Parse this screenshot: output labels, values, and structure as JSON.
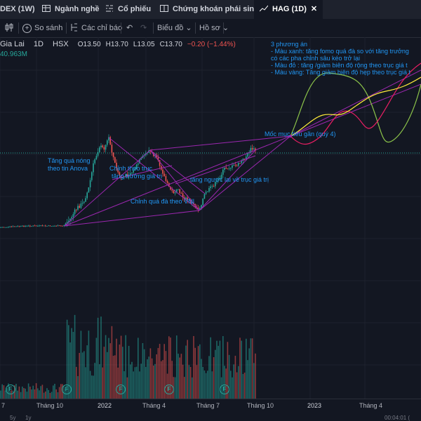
{
  "tabs": [
    {
      "label": "DEX (1W)",
      "icon": "none"
    },
    {
      "label": "Ngành nghề",
      "icon": "table-icon"
    },
    {
      "label": "Cổ phiếu",
      "icon": "filter-icon"
    },
    {
      "label": "Chứng khoán phái sinh",
      "icon": "columns-icon"
    },
    {
      "label": "HAG (1D)",
      "icon": "chart-icon",
      "close": "✕",
      "active": true
    }
  ],
  "toolbar": {
    "compare": "So sánh",
    "indicators": "Các chỉ báo",
    "chart_type": "Biểu đồ",
    "profile": "Hồ sơ"
  },
  "symbol": {
    "name": "Gia Lai",
    "interval": "1D",
    "exchange": "HSX",
    "o": "O13.50",
    "h": "H13.70",
    "l": "L13.05",
    "c": "C13.70",
    "change": "−0.20 (−1.44%)",
    "volume": "40.963M"
  },
  "annotations": {
    "a1": "Tăng quá nóng",
    "a2": "theo tin Anova",
    "a3": "Chỉnh theo trục",
    "a4": "tăng trưởng giá trị",
    "a5": "Chỉnh quá đà  theo VNI",
    "a6": "tăng ngược lại về trục giá trị",
    "a7": "Mốc mục tiêu gần (quý 4)"
  },
  "scenarios": {
    "l1": "3 phương án",
    "l2": "- Màu xanh: tăng fomo quá đà so với tăng trưởng",
    "l3": "có các pha chỉnh sâu kéo trở lại",
    "l4": "- Màu đỏ : tăng /giảm biên độ rộng theo trục giá t",
    "l5": "- Màu vàng: Tăng giảm biên độ hẹp theo trục giá t"
  },
  "xaxis": {
    "t0": "7",
    "t1": "Tháng 10",
    "t2": "2022",
    "t3": "Tháng 4",
    "t4": "Tháng 7",
    "t5": "Tháng 10",
    "t6": "2023",
    "t7": "Tháng 4"
  },
  "bottom": {
    "b1": "5y",
    "b2": "1y",
    "b3": "00:04:01 (",
    "event_badge": "F"
  },
  "colors": {
    "up": "#26a69a",
    "down": "#ef5350",
    "trend": "#9c27b0",
    "green_scenario": "#8bc34a",
    "red_scenario": "#e91e63",
    "yellow_scenario": "#ffeb3b",
    "annotation": "#2196f3"
  }
}
